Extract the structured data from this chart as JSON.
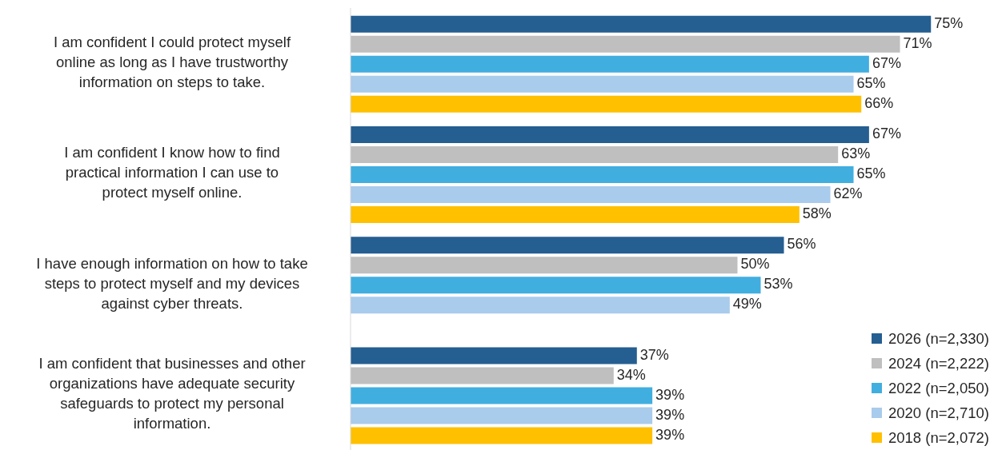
{
  "chart_data": {
    "type": "bar",
    "orientation": "horizontal",
    "categories": [
      "I am confident I could protect myself online as long as I have trustworthy information on steps to take.",
      "I am confident I know how to find practical information I can use to protect myself online.",
      "I have enough information on how to take steps to protect myself and my devices against cyber threats.",
      "I am confident that businesses and other organizations have adequate security safeguards to protect my personal information."
    ],
    "series": [
      {
        "name": "2026 (n=2,330)",
        "color": "#255e91",
        "values": [
          75,
          67,
          56,
          37
        ],
        "value_labels": [
          "75%",
          "67%",
          "56%",
          "37%"
        ]
      },
      {
        "name": "2024 (n=2,222)",
        "color": "#bfbfbf",
        "values": [
          71,
          63,
          50,
          34
        ],
        "value_labels": [
          "71%",
          "63%",
          "50%",
          "34%"
        ]
      },
      {
        "name": "2022 (n=2,050)",
        "color": "#41aee0",
        "values": [
          67,
          65,
          53,
          39
        ],
        "value_labels": [
          "67%",
          "65%",
          "53%",
          "39%"
        ]
      },
      {
        "name": "2020 (n=2,710)",
        "color": "#a9cbec",
        "values": [
          65,
          62,
          49,
          39
        ],
        "value_labels": [
          "65%",
          "62%",
          "49%",
          "39%"
        ]
      },
      {
        "name": "2018 (n=2,072)",
        "color": "#ffc000",
        "values": [
          66,
          58,
          null,
          39
        ],
        "value_labels": [
          "66%",
          "58%",
          null,
          "39%"
        ]
      }
    ],
    "legend": "bottom right",
    "tick_labels": "y",
    "grid": false
  }
}
